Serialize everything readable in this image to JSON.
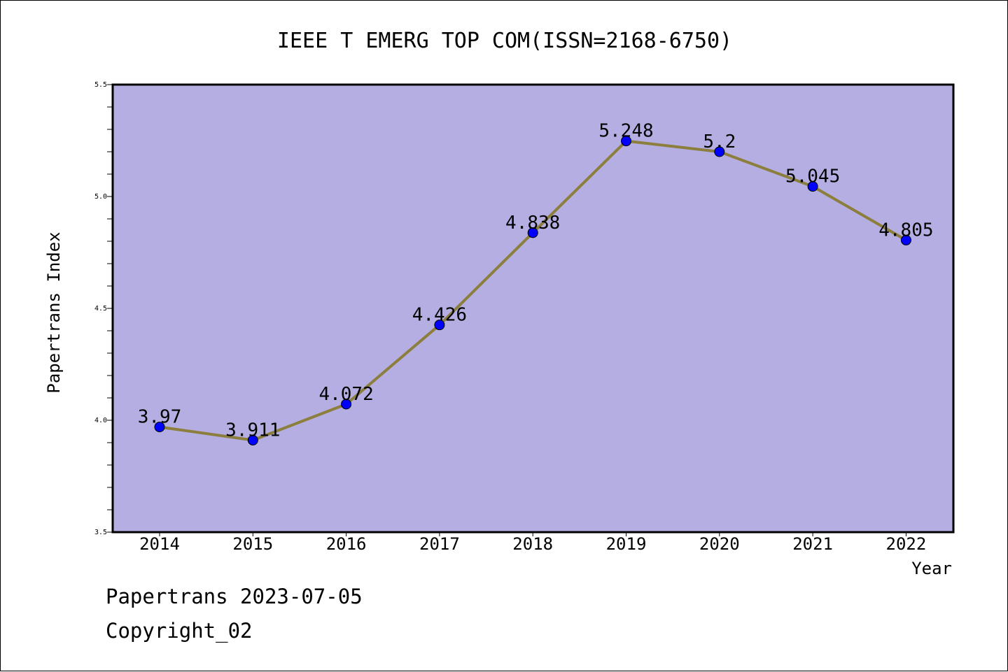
{
  "chart_data": {
    "type": "line",
    "title": "IEEE T EMERG TOP COM(ISSN=2168-6750)",
    "xlabel": "Year",
    "ylabel": "Papertrans Index",
    "categories": [
      "2014",
      "2015",
      "2016",
      "2017",
      "2018",
      "2019",
      "2020",
      "2021",
      "2022"
    ],
    "values": [
      3.97,
      3.911,
      4.072,
      4.426,
      4.838,
      5.248,
      5.2,
      5.045,
      4.805
    ],
    "data_labels": [
      "3.97",
      "3.911",
      "4.072",
      "4.426",
      "4.838",
      "5.248",
      "5.2",
      "5.045",
      "4.805"
    ],
    "ylim": [
      3.5,
      5.5
    ],
    "yticks": [
      "3.5",
      "4.0",
      "4.5",
      "5.0",
      "5.5"
    ],
    "grid": false,
    "colors": {
      "plot_background": "#b5aee2",
      "line": "#8c7e3c",
      "marker": "#0000ff"
    }
  },
  "footer": {
    "line1": "Papertrans 2023-07-05",
    "line2": "Copyright_02"
  }
}
